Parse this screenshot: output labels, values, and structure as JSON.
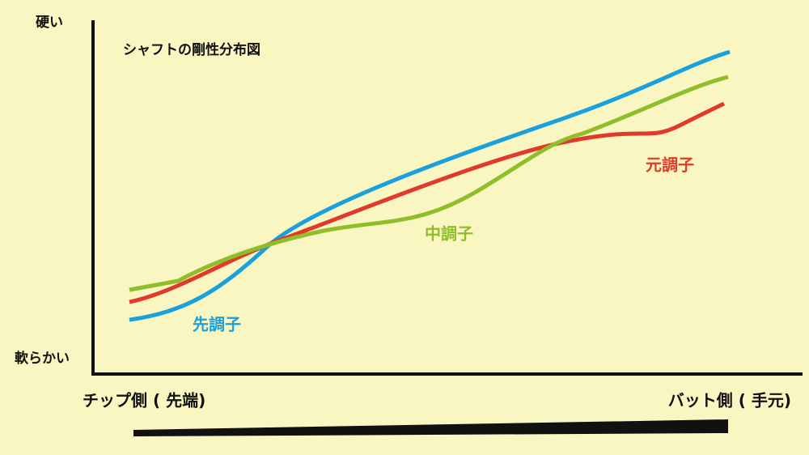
{
  "title": "シャフトの剛性分布図",
  "y_axis": {
    "top": "硬い",
    "bottom": "軟らかい"
  },
  "x_axis": {
    "left": "チップ側 ( 先端)",
    "right": "バット側 ( 手元)"
  },
  "curves": {
    "tip": "先調子",
    "mid": "中調子",
    "butt": "元調子"
  }
}
